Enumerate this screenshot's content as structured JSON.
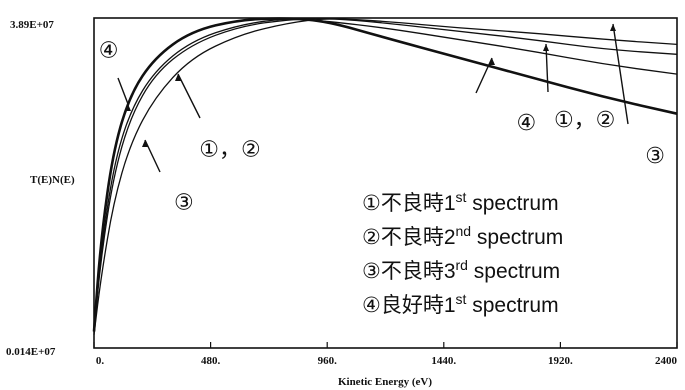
{
  "chart_data": {
    "type": "line",
    "xlabel": "Kinetic Energy  (eV)",
    "ylabel": "T(E)N(E)",
    "xlim": [
      0,
      2400
    ],
    "y_top_label": "3.89E+07",
    "y_bottom_label": "0.014E+07",
    "x_ticks": [
      {
        "value": 0,
        "label": "0."
      },
      {
        "value": 480,
        "label": "480."
      },
      {
        "value": 960,
        "label": "960."
      },
      {
        "value": 1440,
        "label": "1440."
      },
      {
        "value": 1920,
        "label": "1920."
      },
      {
        "value": 2400,
        "label": "2400"
      }
    ],
    "grid": false,
    "legend_position": "bottom-right",
    "series": [
      {
        "id": "s1",
        "marker": "①",
        "name": "不良時",
        "sup": "st",
        "num": "1",
        "suffix": " spectrum",
        "x": [
          0,
          30,
          80,
          150,
          250,
          400,
          600,
          800,
          960,
          1200,
          1500,
          1800,
          2100,
          2400
        ],
        "y": [
          0.05,
          0.3,
          0.55,
          0.72,
          0.84,
          0.93,
          0.98,
          1.0,
          0.99,
          0.97,
          0.935,
          0.9,
          0.86,
          0.83
        ]
      },
      {
        "id": "s2",
        "marker": "②",
        "name": "不良時",
        "sup": "nd",
        "num": "2",
        "suffix": " spectrum",
        "x": [
          0,
          30,
          80,
          150,
          250,
          400,
          600,
          800,
          960,
          1200,
          1500,
          1800,
          2100,
          2400
        ],
        "y": [
          0.05,
          0.28,
          0.52,
          0.7,
          0.83,
          0.92,
          0.975,
          0.995,
          1.0,
          0.985,
          0.96,
          0.935,
          0.905,
          0.89
        ]
      },
      {
        "id": "s3",
        "marker": "③",
        "name": "不良時",
        "sup": "rd",
        "num": "3",
        "suffix": " spectrum",
        "x": [
          0,
          30,
          80,
          150,
          250,
          400,
          600,
          800,
          960,
          1200,
          1500,
          1800,
          2100,
          2400
        ],
        "y": [
          0.04,
          0.22,
          0.44,
          0.62,
          0.76,
          0.88,
          0.95,
          0.985,
          1.0,
          0.99,
          0.97,
          0.955,
          0.935,
          0.92
        ]
      },
      {
        "id": "s4",
        "marker": "④",
        "name": "良好時",
        "sup": "st",
        "num": "1",
        "suffix": " spectrum",
        "x": [
          0,
          30,
          80,
          150,
          250,
          400,
          600,
          800,
          960,
          1200,
          1500,
          1800,
          2100,
          2400
        ],
        "y": [
          0.05,
          0.34,
          0.6,
          0.77,
          0.88,
          0.96,
          0.995,
          1.0,
          0.99,
          0.94,
          0.88,
          0.82,
          0.76,
          0.71
        ]
      }
    ],
    "annotations": [
      {
        "text": "④",
        "x": 60,
        "y": 0.88
      },
      {
        "text": "①，②",
        "x": 560,
        "y": 0.58
      },
      {
        "text": "③",
        "x": 370,
        "y": 0.42
      },
      {
        "text": "④",
        "x": 1780,
        "y": 0.66
      },
      {
        "text": "①，②",
        "x": 2020,
        "y": 0.67
      },
      {
        "text": "③",
        "x": 2310,
        "y": 0.56
      }
    ]
  }
}
